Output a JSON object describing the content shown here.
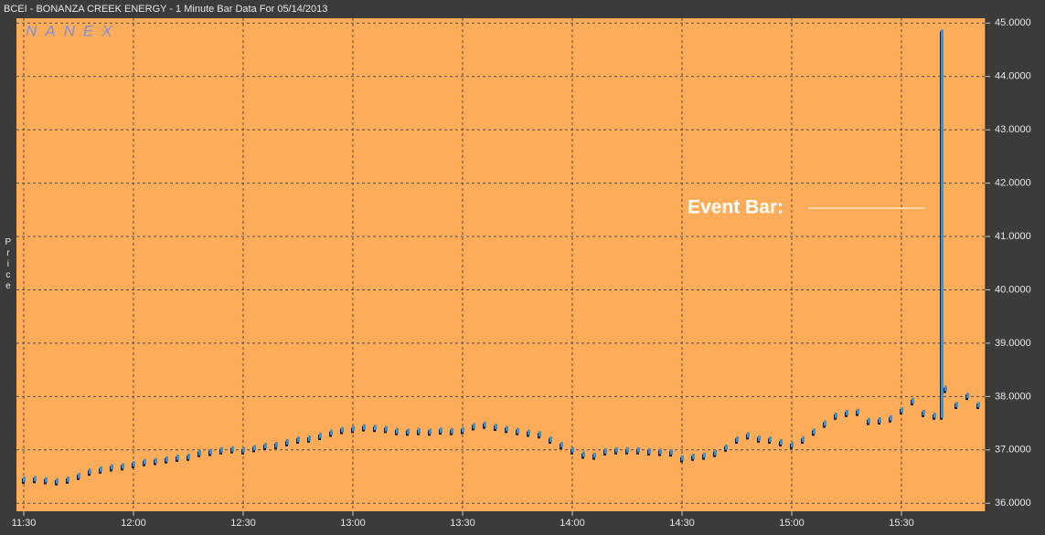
{
  "chart_data": {
    "type": "range-bar",
    "title": "BCEI - BONANZA CREEK ENERGY - 1 Minute Bar Data For 05/14/2013",
    "watermark": "NANEX",
    "y_label": "Price",
    "annotation": "Event Bar:",
    "x": [
      "11:30",
      "11:33",
      "11:36",
      "11:39",
      "11:42",
      "11:45",
      "11:48",
      "11:51",
      "11:54",
      "11:57",
      "12:00",
      "12:03",
      "12:06",
      "12:09",
      "12:12",
      "12:15",
      "12:18",
      "12:21",
      "12:24",
      "12:27",
      "12:30",
      "12:33",
      "12:36",
      "12:39",
      "12:42",
      "12:45",
      "12:48",
      "12:51",
      "12:54",
      "12:57",
      "13:00",
      "13:03",
      "13:06",
      "13:09",
      "13:12",
      "13:15",
      "13:18",
      "13:21",
      "13:24",
      "13:27",
      "13:30",
      "13:33",
      "13:36",
      "13:39",
      "13:42",
      "13:45",
      "13:48",
      "13:51",
      "13:54",
      "13:57",
      "14:00",
      "14:03",
      "14:06",
      "14:09",
      "14:12",
      "14:15",
      "14:18",
      "14:21",
      "14:24",
      "14:27",
      "14:30",
      "14:33",
      "14:36",
      "14:39",
      "14:42",
      "14:45",
      "14:48",
      "14:51",
      "14:54",
      "14:57",
      "15:00",
      "15:03",
      "15:06",
      "15:09",
      "15:12",
      "15:15",
      "15:18",
      "15:21",
      "15:24",
      "15:27",
      "15:30",
      "15:33",
      "15:36",
      "15:39",
      "15:41",
      "15:42",
      "15:45",
      "15:48",
      "15:51"
    ],
    "high": [
      36.5,
      36.51,
      36.49,
      36.47,
      36.5,
      36.57,
      36.65,
      36.69,
      36.73,
      36.75,
      36.79,
      36.83,
      36.85,
      36.88,
      36.91,
      36.93,
      37.0,
      37.02,
      37.05,
      37.07,
      37.05,
      37.09,
      37.13,
      37.15,
      37.2,
      37.25,
      37.27,
      37.32,
      37.38,
      37.43,
      37.45,
      37.48,
      37.47,
      37.45,
      37.41,
      37.4,
      37.41,
      37.4,
      37.42,
      37.41,
      37.43,
      37.5,
      37.53,
      37.49,
      37.45,
      37.41,
      37.38,
      37.35,
      37.25,
      37.15,
      37.05,
      36.97,
      36.95,
      37.03,
      37.05,
      37.05,
      37.05,
      37.03,
      37.02,
      37.01,
      36.9,
      36.93,
      36.95,
      37.0,
      37.1,
      37.25,
      37.33,
      37.27,
      37.25,
      37.2,
      37.15,
      37.25,
      37.4,
      37.55,
      37.7,
      37.75,
      37.77,
      37.6,
      37.61,
      37.65,
      37.8,
      37.97,
      37.75,
      37.7,
      44.88,
      38.2,
      37.9,
      38.07,
      37.9
    ],
    "low": [
      36.4,
      36.41,
      36.39,
      36.37,
      36.4,
      36.47,
      36.55,
      36.59,
      36.63,
      36.65,
      36.69,
      36.73,
      36.75,
      36.78,
      36.81,
      36.83,
      36.9,
      36.92,
      36.95,
      36.97,
      36.95,
      36.99,
      37.03,
      37.05,
      37.1,
      37.15,
      37.17,
      37.22,
      37.28,
      37.33,
      37.35,
      37.38,
      37.37,
      37.35,
      37.31,
      37.3,
      37.31,
      37.3,
      37.32,
      37.31,
      37.33,
      37.4,
      37.43,
      37.39,
      37.35,
      37.31,
      37.28,
      37.25,
      37.15,
      37.05,
      36.95,
      36.87,
      36.85,
      36.93,
      36.95,
      36.95,
      36.95,
      36.93,
      36.92,
      36.91,
      36.8,
      36.83,
      36.85,
      36.9,
      37.0,
      37.15,
      37.23,
      37.17,
      37.15,
      37.1,
      37.05,
      37.15,
      37.3,
      37.45,
      37.6,
      37.65,
      37.67,
      37.5,
      37.51,
      37.55,
      37.7,
      37.87,
      37.65,
      37.6,
      37.6,
      38.1,
      37.8,
      37.97,
      37.8
    ],
    "color": "#1e9bf0",
    "xlim": [
      "11:28",
      "15:53"
    ],
    "xticks": [
      "11:30",
      "12:00",
      "12:30",
      "13:00",
      "13:30",
      "14:00",
      "14:30",
      "15:00",
      "15:30"
    ],
    "ylim": [
      35.85,
      45.09
    ],
    "yticks": [
      {
        "value": 36,
        "label": "36.0000"
      },
      {
        "value": 37,
        "label": "37.0000"
      },
      {
        "value": 38,
        "label": "38.0000"
      },
      {
        "value": 39,
        "label": "39.0000"
      },
      {
        "value": 40,
        "label": "40.0000"
      },
      {
        "value": 41,
        "label": "41.0000"
      },
      {
        "value": 42,
        "label": "42.0000"
      },
      {
        "value": 43,
        "label": "43.0000"
      },
      {
        "value": 44,
        "label": "44.0000"
      },
      {
        "value": 45,
        "label": "45.0000"
      }
    ],
    "grid": true
  }
}
